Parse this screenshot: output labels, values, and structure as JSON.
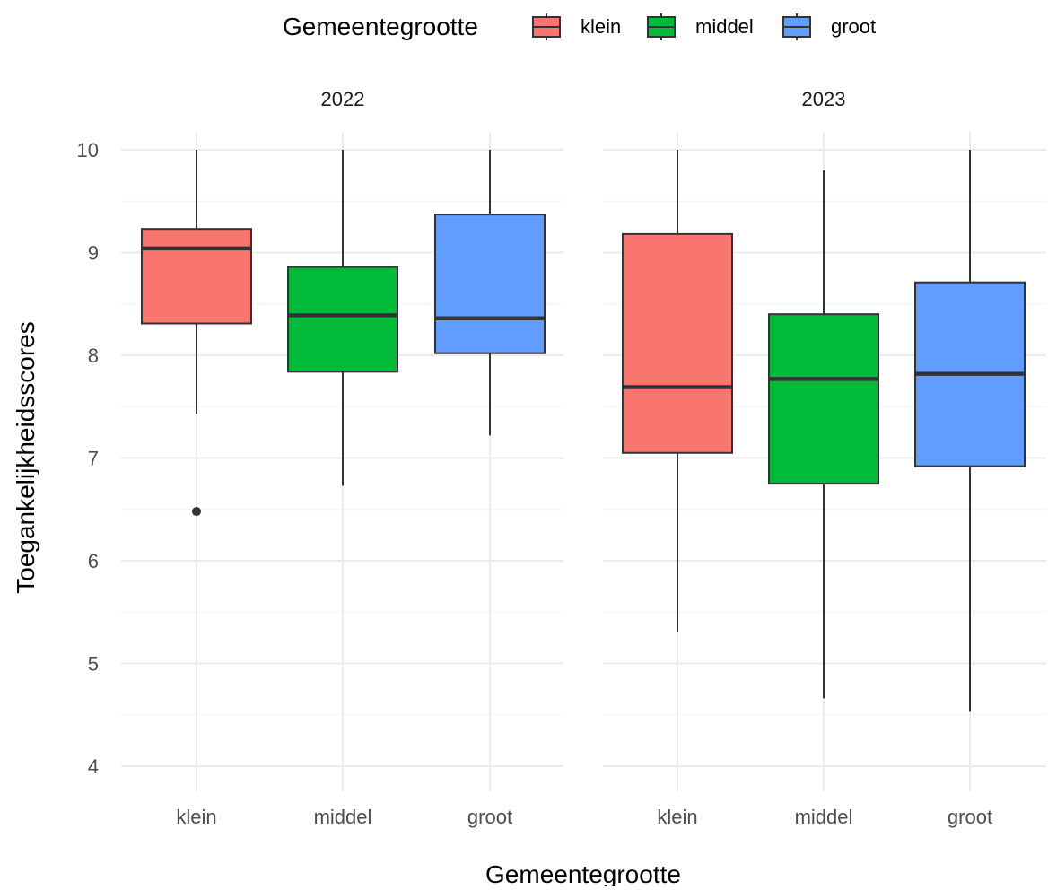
{
  "chart_data": {
    "type": "boxplot",
    "legend": {
      "title": "Gemeentegrootte",
      "position": "top",
      "entries": [
        {
          "label": "klein",
          "color": "#F8766D"
        },
        {
          "label": "middel",
          "color": "#00BA38"
        },
        {
          "label": "groot",
          "color": "#619CFF"
        }
      ]
    },
    "xlabel": "Gemeentegrootte",
    "ylabel": "Toegankelijkheidsscores",
    "ylim": [
      4,
      10
    ],
    "yticks": [
      "4",
      "5",
      "6",
      "7",
      "8",
      "9",
      "10"
    ],
    "grid": true,
    "facets": [
      {
        "label": "2022",
        "categories": [
          "klein",
          "middel",
          "groot"
        ],
        "boxes": [
          {
            "category": "klein",
            "min": 7.43,
            "q1": 8.31,
            "median": 9.04,
            "q3": 9.23,
            "max": 10.0,
            "outliers": [
              6.48
            ]
          },
          {
            "category": "middel",
            "min": 6.73,
            "q1": 7.84,
            "median": 8.39,
            "q3": 8.86,
            "max": 10.0,
            "outliers": []
          },
          {
            "category": "groot",
            "min": 7.22,
            "q1": 8.02,
            "median": 8.36,
            "q3": 9.37,
            "max": 10.0,
            "outliers": []
          }
        ]
      },
      {
        "label": "2023",
        "categories": [
          "klein",
          "middel",
          "groot"
        ],
        "boxes": [
          {
            "category": "klein",
            "min": 5.31,
            "q1": 7.05,
            "median": 7.69,
            "q3": 9.18,
            "max": 10.0,
            "outliers": []
          },
          {
            "category": "middel",
            "min": 4.66,
            "q1": 6.75,
            "median": 7.77,
            "q3": 8.4,
            "max": 9.8,
            "outliers": []
          },
          {
            "category": "groot",
            "min": 4.53,
            "q1": 6.92,
            "median": 7.82,
            "q3": 8.71,
            "max": 10.0,
            "outliers": []
          }
        ]
      }
    ]
  }
}
